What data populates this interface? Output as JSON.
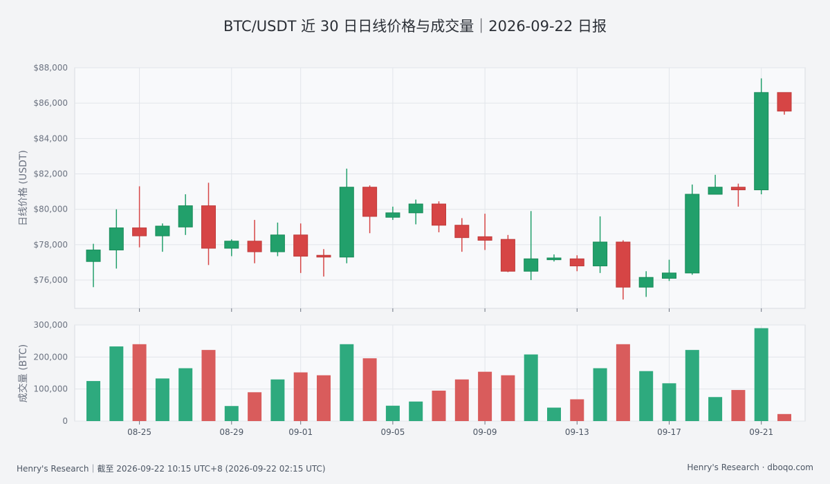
{
  "chart_data": [
    {
      "type": "candlestick",
      "title": "BTC/USDT 近 30 日日线价格与成交量｜2026-09-22 日报",
      "ylabel": "日线价格 (USDT)",
      "ylim": [
        74400,
        88000
      ],
      "yticks": [
        76000,
        78000,
        80000,
        82000,
        84000,
        86000,
        88000
      ],
      "ytick_labels": [
        "$76,000",
        "$78,000",
        "$80,000",
        "$82,000",
        "$84,000",
        "$86,000",
        "$88,000"
      ],
      "x": [
        "08-23",
        "08-24",
        "08-25",
        "08-26",
        "08-27",
        "08-28",
        "08-29",
        "08-30",
        "08-31",
        "09-01",
        "09-02",
        "09-03",
        "09-04",
        "09-05",
        "09-06",
        "09-07",
        "09-08",
        "09-09",
        "09-10",
        "09-11",
        "09-12",
        "09-13",
        "09-14",
        "09-15",
        "09-16",
        "09-17",
        "09-18",
        "09-19",
        "09-20",
        "09-21",
        "09-22"
      ],
      "xticks": [
        "08-25",
        "08-29",
        "09-01",
        "09-05",
        "09-09",
        "09-13",
        "09-17",
        "09-21"
      ],
      "up_color": "#22a06b",
      "down_color": "#d64545",
      "grid": true,
      "candles": [
        {
          "date": "08-23",
          "open": 77050,
          "high": 78050,
          "low": 75600,
          "close": 77700
        },
        {
          "date": "08-24",
          "open": 77700,
          "high": 80000,
          "low": 76650,
          "close": 78950
        },
        {
          "date": "08-25",
          "open": 78950,
          "high": 81300,
          "low": 77850,
          "close": 78500
        },
        {
          "date": "08-26",
          "open": 78500,
          "high": 79200,
          "low": 77600,
          "close": 79050
        },
        {
          "date": "08-27",
          "open": 79000,
          "high": 80850,
          "low": 78550,
          "close": 80200
        },
        {
          "date": "08-28",
          "open": 80200,
          "high": 81500,
          "low": 76850,
          "close": 77800
        },
        {
          "date": "08-29",
          "open": 77800,
          "high": 78300,
          "low": 77350,
          "close": 78200
        },
        {
          "date": "08-30",
          "open": 78200,
          "high": 79400,
          "low": 76950,
          "close": 77600
        },
        {
          "date": "08-31",
          "open": 77600,
          "high": 79250,
          "low": 77350,
          "close": 78550
        },
        {
          "date": "09-01",
          "open": 78550,
          "high": 79200,
          "low": 76400,
          "close": 77350
        },
        {
          "date": "09-02",
          "open": 77400,
          "high": 77750,
          "low": 76200,
          "close": 77300
        },
        {
          "date": "09-03",
          "open": 77300,
          "high": 82300,
          "low": 76950,
          "close": 81250
        },
        {
          "date": "09-04",
          "open": 81250,
          "high": 81350,
          "low": 78650,
          "close": 79600
        },
        {
          "date": "09-05",
          "open": 79550,
          "high": 80150,
          "low": 79400,
          "close": 79800
        },
        {
          "date": "09-06",
          "open": 79800,
          "high": 80550,
          "low": 79150,
          "close": 80300
        },
        {
          "date": "09-07",
          "open": 80300,
          "high": 80450,
          "low": 78700,
          "close": 79100
        },
        {
          "date": "09-08",
          "open": 79100,
          "high": 79500,
          "low": 77600,
          "close": 78400
        },
        {
          "date": "09-09",
          "open": 78450,
          "high": 79750,
          "low": 77700,
          "close": 78250
        },
        {
          "date": "09-10",
          "open": 78300,
          "high": 78550,
          "low": 76450,
          "close": 76500
        },
        {
          "date": "09-11",
          "open": 76500,
          "high": 79900,
          "low": 76000,
          "close": 77200
        },
        {
          "date": "09-12",
          "open": 77150,
          "high": 77450,
          "low": 77050,
          "close": 77250
        },
        {
          "date": "09-13",
          "open": 77200,
          "high": 77400,
          "low": 76500,
          "close": 76800
        },
        {
          "date": "09-14",
          "open": 76800,
          "high": 79600,
          "low": 76400,
          "close": 78150
        },
        {
          "date": "09-15",
          "open": 78150,
          "high": 78250,
          "low": 74900,
          "close": 75600
        },
        {
          "date": "09-16",
          "open": 75600,
          "high": 76500,
          "low": 75050,
          "close": 76150
        },
        {
          "date": "09-17",
          "open": 76100,
          "high": 77150,
          "low": 75950,
          "close": 76400
        },
        {
          "date": "09-18",
          "open": 76400,
          "high": 81400,
          "low": 76300,
          "close": 80850
        },
        {
          "date": "09-19",
          "open": 80850,
          "high": 81950,
          "low": 80850,
          "close": 81250
        },
        {
          "date": "09-20",
          "open": 81250,
          "high": 81450,
          "low": 80150,
          "close": 81100
        },
        {
          "date": "09-21",
          "open": 81100,
          "high": 87400,
          "low": 80850,
          "close": 86600
        },
        {
          "date": "09-22",
          "open": 86600,
          "high": 86600,
          "low": 85350,
          "close": 85550
        }
      ]
    },
    {
      "type": "bar",
      "ylabel": "成交量 (BTC)",
      "ylim": [
        0,
        300000
      ],
      "yticks": [
        0,
        100000,
        200000,
        300000
      ],
      "ytick_labels": [
        "0",
        "100,000",
        "200,000",
        "300,000"
      ],
      "x": [
        "08-23",
        "08-24",
        "08-25",
        "08-26",
        "08-27",
        "08-28",
        "08-29",
        "08-30",
        "08-31",
        "09-01",
        "09-02",
        "09-03",
        "09-04",
        "09-05",
        "09-06",
        "09-07",
        "09-08",
        "09-09",
        "09-10",
        "09-11",
        "09-12",
        "09-13",
        "09-14",
        "09-15",
        "09-16",
        "09-17",
        "09-18",
        "09-19",
        "09-20",
        "09-21",
        "09-22"
      ],
      "xticks": [
        "08-25",
        "08-29",
        "09-01",
        "09-05",
        "09-09",
        "09-13",
        "09-17",
        "09-21"
      ],
      "grid": true,
      "values": [
        125000,
        233000,
        240000,
        133000,
        165000,
        222000,
        47000,
        90000,
        130000,
        152000,
        143000,
        240000,
        196000,
        48000,
        61000,
        95000,
        130000,
        154000,
        143000,
        208000,
        42000,
        68000,
        165000,
        240000,
        156000,
        118000,
        222000,
        75000,
        97000,
        290000,
        22000
      ]
    }
  ],
  "footer": {
    "left": "Henry's Research｜截至 2026-09-22 10:15 UTC+8 (2026-09-22 02:15 UTC)",
    "right": "Henry's Research · dboqo.com"
  }
}
